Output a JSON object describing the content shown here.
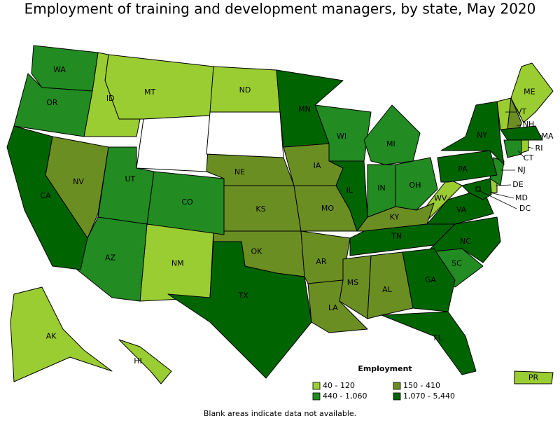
{
  "title": "Employment of training and development managers, by state, May 2020",
  "legend": {
    "title": "Employment",
    "items": [
      {
        "label": "40 - 120",
        "color": "#9acd32",
        "states": [
          "MT",
          "ID",
          "ND",
          "NM",
          "AK",
          "HI",
          "ME",
          "VT",
          "WV",
          "DE",
          "RI",
          "PR"
        ]
      },
      {
        "label": "150 - 410",
        "color": "#6b8e23",
        "states": [
          "NV",
          "NE",
          "IA",
          "KS",
          "MO",
          "OK",
          "AR",
          "LA",
          "MS",
          "AL",
          "KY",
          "NH"
        ]
      },
      {
        "label": "440 - 1,060",
        "color": "#228b22",
        "states": [
          "WA",
          "OR",
          "UT",
          "AZ",
          "CO",
          "WI",
          "MI",
          "IN",
          "OH",
          "SC",
          "CT",
          "NJ"
        ]
      },
      {
        "label": "1,070 - 5,440",
        "color": "#006400",
        "states": [
          "CA",
          "TX",
          "MN",
          "IL",
          "TN",
          "NC",
          "GA",
          "FL",
          "VA",
          "PA",
          "NY",
          "MA",
          "MD",
          "DC"
        ]
      }
    ]
  },
  "footnote": "Blank areas indicate data not available."
}
